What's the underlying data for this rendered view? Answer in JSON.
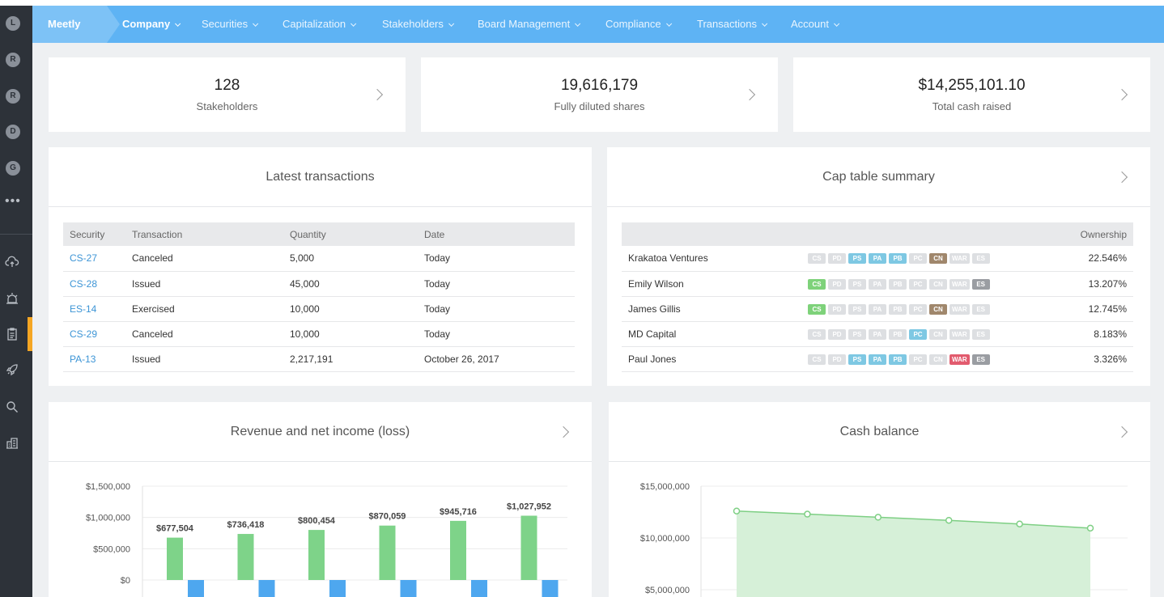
{
  "sidebar": {
    "avatars": [
      "L",
      "R",
      "R",
      "D",
      "G"
    ],
    "more": "•••",
    "icons": [
      "cloud-upload-icon",
      "alarm-icon",
      "clipboard-icon",
      "rocket-icon",
      "search-icon",
      "building-icon"
    ]
  },
  "nav": {
    "brand": "Meetly",
    "items": [
      "Company",
      "Securities",
      "Capitalization",
      "Stakeholders",
      "Board Management",
      "Compliance",
      "Transactions",
      "Account"
    ],
    "active": "Company"
  },
  "stats": [
    {
      "value": "128",
      "label": "Stakeholders"
    },
    {
      "value": "19,616,179",
      "label": "Fully diluted shares"
    },
    {
      "value": "$14,255,101.10",
      "label": "Total cash raised"
    }
  ],
  "transactions": {
    "title": "Latest transactions",
    "columns": [
      "Security",
      "Transaction",
      "Quantity",
      "Date"
    ],
    "rows": [
      [
        "CS-27",
        "Canceled",
        "5,000",
        "Today"
      ],
      [
        "CS-28",
        "Issued",
        "45,000",
        "Today"
      ],
      [
        "ES-14",
        "Exercised",
        "10,000",
        "Today"
      ],
      [
        "CS-29",
        "Canceled",
        "10,000",
        "Today"
      ],
      [
        "PA-13",
        "Issued",
        "2,217,191",
        "October 26, 2017"
      ]
    ]
  },
  "captable": {
    "title": "Cap table summary",
    "ownership_header": "Ownership",
    "tag_labels": [
      "CS",
      "PD",
      "PS",
      "PA",
      "PB",
      "PC",
      "CN",
      "WAR",
      "ES"
    ],
    "rows": [
      {
        "name": "Krakatoa Ventures",
        "active": [
          "PS",
          "PA",
          "PB",
          "CN"
        ],
        "ownership": "22.546%"
      },
      {
        "name": "Emily Wilson",
        "active": [
          "CS",
          "ES"
        ],
        "ownership": "13.207%"
      },
      {
        "name": "James Gillis",
        "active": [
          "CS",
          "CN"
        ],
        "ownership": "12.745%"
      },
      {
        "name": "MD Capital",
        "active": [
          "PC"
        ],
        "ownership": "8.183%"
      },
      {
        "name": "Paul Jones",
        "active": [
          "PS",
          "PA",
          "PB",
          "WAR",
          "ES"
        ],
        "ownership": "3.326%"
      }
    ]
  },
  "revenue": {
    "title": "Revenue and net income (loss)"
  },
  "cash": {
    "title": "Cash balance"
  },
  "chart_data": [
    {
      "type": "bar",
      "title": "Revenue and net income (loss)",
      "ylim": [
        0,
        1500000
      ],
      "yticks": [
        "$1,500,000",
        "$1,000,000",
        "$500,000",
        "$0"
      ],
      "ytick_values": [
        1500000,
        1000000,
        500000,
        0
      ],
      "series": [
        {
          "name": "",
          "color": "#7ed389",
          "values": [
            677504,
            736418,
            800454,
            870059,
            945716,
            1027952
          ],
          "labels": [
            "$677,504",
            "$736,418",
            "$800,454",
            "$870,059",
            "$945,716",
            "$1,027,952"
          ]
        },
        {
          "name": "",
          "color": "#4ea7ef",
          "values": [
            -150000,
            -150000,
            -150000,
            -150000,
            -150000,
            -150000
          ]
        }
      ]
    },
    {
      "type": "area",
      "title": "Cash balance",
      "ylim": [
        5000000,
        15000000
      ],
      "yticks": [
        "$15,000,000",
        "$10,000,000",
        "$5,000,000"
      ],
      "ytick_values": [
        15000000,
        10000000,
        5000000
      ],
      "color": "#7ecf84",
      "values": [
        12600000,
        12300000,
        12000000,
        11700000,
        11350000,
        10950000
      ]
    }
  ]
}
